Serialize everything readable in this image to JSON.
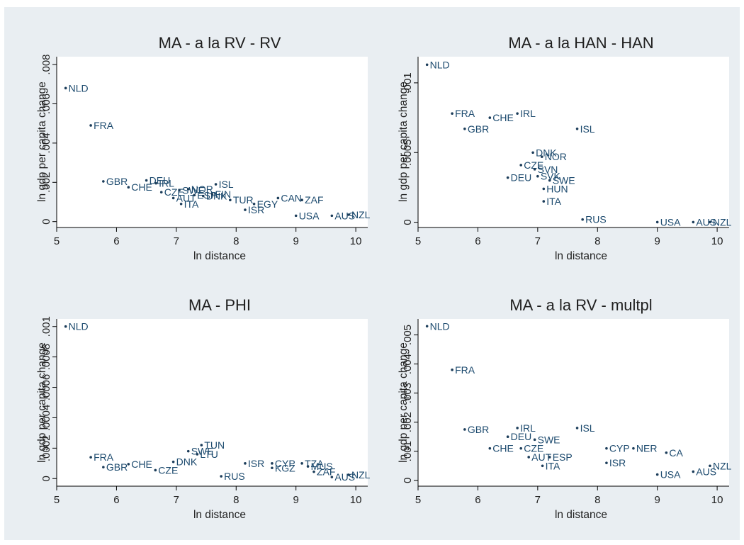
{
  "chart_data": [
    {
      "type": "scatter",
      "title": "MA - a la RV - RV",
      "xlabel": "ln distance",
      "ylabel": "ln gdp per capita change",
      "xlim": [
        5,
        10.2
      ],
      "ylim": [
        -0.0003,
        0.0084
      ],
      "xticks": [
        5,
        6,
        7,
        8,
        9,
        10
      ],
      "yticks": [
        0,
        0.002,
        0.004,
        0.006,
        0.008
      ],
      "yticklabels": [
        "0",
        ".002",
        ".004",
        ".006",
        ".008"
      ],
      "grid": false,
      "legend": "none",
      "points": [
        {
          "label": "NLD",
          "x": 5.15,
          "y": 0.0068
        },
        {
          "label": "FRA",
          "x": 5.57,
          "y": 0.0049
        },
        {
          "label": "GBR",
          "x": 5.78,
          "y": 0.00205
        },
        {
          "label": "CHE",
          "x": 6.2,
          "y": 0.00175
        },
        {
          "label": "DEU",
          "x": 6.5,
          "y": 0.0021
        },
        {
          "label": "IRL",
          "x": 6.66,
          "y": 0.00195
        },
        {
          "label": "CZE",
          "x": 6.75,
          "y": 0.0015
        },
        {
          "label": "AUT",
          "x": 6.95,
          "y": 0.0012
        },
        {
          "label": "SWE",
          "x": 7.05,
          "y": 0.0016
        },
        {
          "label": "NOR",
          "x": 7.2,
          "y": 0.00165
        },
        {
          "label": "ITA",
          "x": 7.08,
          "y": 0.0009
        },
        {
          "label": "ESP",
          "x": 7.3,
          "y": 0.00135
        },
        {
          "label": "DNK",
          "x": 7.45,
          "y": 0.0013
        },
        {
          "label": "ISL",
          "x": 7.66,
          "y": 0.0019
        },
        {
          "label": "FIN",
          "x": 7.6,
          "y": 0.0014
        },
        {
          "label": "TUR",
          "x": 7.9,
          "y": 0.0011
        },
        {
          "label": "ISR",
          "x": 8.15,
          "y": 0.0006
        },
        {
          "label": "EGY",
          "x": 8.3,
          "y": 0.0009
        },
        {
          "label": "CAN",
          "x": 8.7,
          "y": 0.0012
        },
        {
          "label": "ZAF",
          "x": 9.1,
          "y": 0.0011
        },
        {
          "label": "USA",
          "x": 9.0,
          "y": 0.0003
        },
        {
          "label": "AUS",
          "x": 9.6,
          "y": 0.0003
        },
        {
          "label": "NZL",
          "x": 9.88,
          "y": 0.00035
        }
      ]
    },
    {
      "type": "scatter",
      "title": "MA - a la HAN - HAN",
      "xlabel": "ln distance",
      "ylabel": "ln gdp per capita change",
      "xlim": [
        5,
        10.2
      ],
      "ylim": [
        -3.75e-05,
        0.0011875
      ],
      "xticks": [
        5,
        6,
        7,
        8,
        9,
        10
      ],
      "yticks": [
        0,
        0.0005,
        0.001
      ],
      "yticklabels": [
        "0",
        ".0005",
        ".001"
      ],
      "grid": false,
      "legend": "none",
      "points": [
        {
          "label": "NLD",
          "x": 5.15,
          "y": 0.00113
        },
        {
          "label": "FRA",
          "x": 5.57,
          "y": 0.00078
        },
        {
          "label": "CHE",
          "x": 6.2,
          "y": 0.00075
        },
        {
          "label": "IRL",
          "x": 6.66,
          "y": 0.00078
        },
        {
          "label": "GBR",
          "x": 5.78,
          "y": 0.00067
        },
        {
          "label": "ISL",
          "x": 7.66,
          "y": 0.00067
        },
        {
          "label": "DNK",
          "x": 6.92,
          "y": 0.0005
        },
        {
          "label": "NOR",
          "x": 7.07,
          "y": 0.00047
        },
        {
          "label": "CZE",
          "x": 6.72,
          "y": 0.00041
        },
        {
          "label": "SVN",
          "x": 6.95,
          "y": 0.00038
        },
        {
          "label": "DEU",
          "x": 6.5,
          "y": 0.00032
        },
        {
          "label": "SVK",
          "x": 7.0,
          "y": 0.00033
        },
        {
          "label": "SWE",
          "x": 7.2,
          "y": 0.0003
        },
        {
          "label": "HUN",
          "x": 7.1,
          "y": 0.00024
        },
        {
          "label": "ITA",
          "x": 7.1,
          "y": 0.00015
        },
        {
          "label": "RUS",
          "x": 7.75,
          "y": 2e-05
        },
        {
          "label": "USA",
          "x": 9.0,
          "y": 1e-06
        },
        {
          "label": "AUS",
          "x": 9.6,
          "y": 1e-06
        },
        {
          "label": "NZL",
          "x": 9.88,
          "y": 1e-06
        }
      ]
    },
    {
      "type": "scatter",
      "title": "MA - PHI",
      "xlabel": "ln distance",
      "ylabel": "ln gdp per capita change",
      "xlim": [
        5,
        10.2
      ],
      "ylim": [
        -5e-05,
        0.00105
      ],
      "xticks": [
        5,
        6,
        7,
        8,
        9,
        10
      ],
      "yticks": [
        0,
        0.0002,
        0.0004,
        0.0006,
        0.0008,
        0.001
      ],
      "yticklabels": [
        "0",
        ".0002",
        ".0004",
        ".0006",
        ".0008",
        ".001"
      ],
      "grid": false,
      "legend": "none",
      "points": [
        {
          "label": "NLD",
          "x": 5.15,
          "y": 0.001
        },
        {
          "label": "TUN",
          "x": 7.42,
          "y": 0.00022
        },
        {
          "label": "FRA",
          "x": 5.57,
          "y": 0.00014
        },
        {
          "label": "SWE",
          "x": 7.2,
          "y": 0.00018
        },
        {
          "label": "LTU",
          "x": 7.35,
          "y": 0.00016
        },
        {
          "label": "GBR",
          "x": 5.78,
          "y": 7.5e-05
        },
        {
          "label": "CHE",
          "x": 6.2,
          "y": 9.5e-05
        },
        {
          "label": "DNK",
          "x": 6.95,
          "y": 0.00011
        },
        {
          "label": "CZE",
          "x": 6.65,
          "y": 5.5e-05
        },
        {
          "label": "ISR",
          "x": 8.15,
          "y": 0.0001
        },
        {
          "label": "CYP",
          "x": 8.6,
          "y": 0.0001
        },
        {
          "label": "TZA",
          "x": 9.1,
          "y": 0.0001
        },
        {
          "label": "MUS",
          "x": 9.2,
          "y": 8e-05
        },
        {
          "label": "KGZ",
          "x": 8.6,
          "y": 7e-05
        },
        {
          "label": "ZAF",
          "x": 9.3,
          "y": 4.5e-05
        },
        {
          "label": "RUS",
          "x": 7.75,
          "y": 1.5e-05
        },
        {
          "label": "NZL",
          "x": 9.88,
          "y": 2.5e-05
        },
        {
          "label": "AUS",
          "x": 9.6,
          "y": 1e-05
        }
      ]
    },
    {
      "type": "scatter",
      "title": "MA - a la RV - multpl",
      "xlabel": "ln distance",
      "ylabel": "ln gdp per capita change",
      "xlim": [
        5,
        10.2
      ],
      "ylim": [
        -0.0002,
        0.00555
      ],
      "xticks": [
        5,
        6,
        7,
        8,
        9,
        10
      ],
      "yticks": [
        0,
        0.001,
        0.002,
        0.003,
        0.004,
        0.005
      ],
      "yticklabels": [
        "0",
        ".001",
        ".002",
        ".003",
        ".004",
        ".005"
      ],
      "grid": false,
      "legend": "none",
      "points": [
        {
          "label": "NLD",
          "x": 5.15,
          "y": 0.0053
        },
        {
          "label": "FRA",
          "x": 5.57,
          "y": 0.0038
        },
        {
          "label": "GBR",
          "x": 5.78,
          "y": 0.00175
        },
        {
          "label": "IRL",
          "x": 6.66,
          "y": 0.0018
        },
        {
          "label": "ISL",
          "x": 7.66,
          "y": 0.0018
        },
        {
          "label": "DEU",
          "x": 6.5,
          "y": 0.0015
        },
        {
          "label": "SWE",
          "x": 6.95,
          "y": 0.0014
        },
        {
          "label": "CHE",
          "x": 6.2,
          "y": 0.0011
        },
        {
          "label": "CZE",
          "x": 6.72,
          "y": 0.0011
        },
        {
          "label": "AUT",
          "x": 6.85,
          "y": 0.0008
        },
        {
          "label": "ESP",
          "x": 7.2,
          "y": 0.0008
        },
        {
          "label": "ITA",
          "x": 7.08,
          "y": 0.0005
        },
        {
          "label": "CYP",
          "x": 8.15,
          "y": 0.0011
        },
        {
          "label": "NER",
          "x": 8.6,
          "y": 0.0011
        },
        {
          "label": "ISR",
          "x": 8.15,
          "y": 0.0006
        },
        {
          "label": "CA",
          "x": 9.15,
          "y": 0.00095
        },
        {
          "label": "USA",
          "x": 9.0,
          "y": 0.0002
        },
        {
          "label": "AUS",
          "x": 9.6,
          "y": 0.0003
        },
        {
          "label": "NZL",
          "x": 9.88,
          "y": 0.0005
        }
      ]
    }
  ]
}
